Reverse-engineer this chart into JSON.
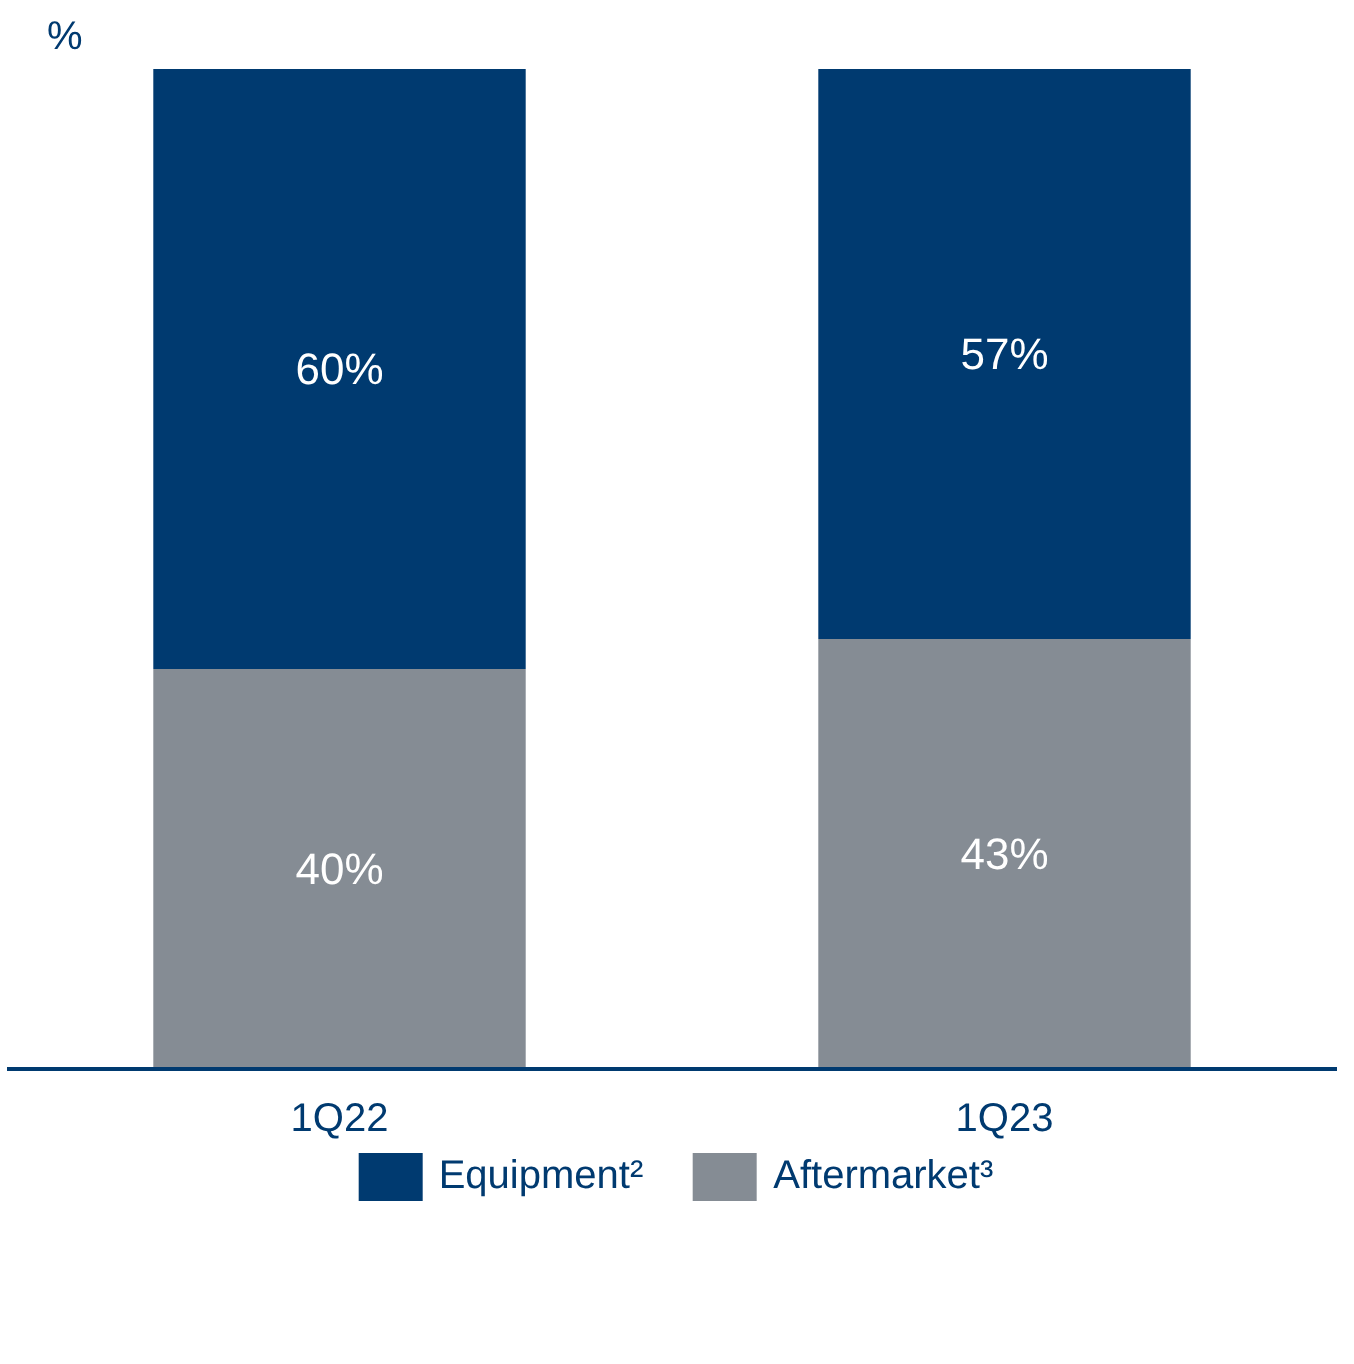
{
  "chart_data": {
    "type": "bar",
    "ylabel": "%",
    "categories": [
      "1Q22",
      "1Q23"
    ],
    "stacked": true,
    "tick_labels": "x",
    "legend": "bottom",
    "grid": false,
    "series": [
      {
        "name": "Aftermarket³",
        "color": "#858c94",
        "values": [
          40,
          43
        ],
        "value_labels": [
          "40%",
          "43%"
        ]
      },
      {
        "name": "Equipment²",
        "color": "#003a70",
        "values": [
          60,
          57
        ],
        "value_labels": [
          "60%",
          "57%"
        ]
      }
    ]
  }
}
